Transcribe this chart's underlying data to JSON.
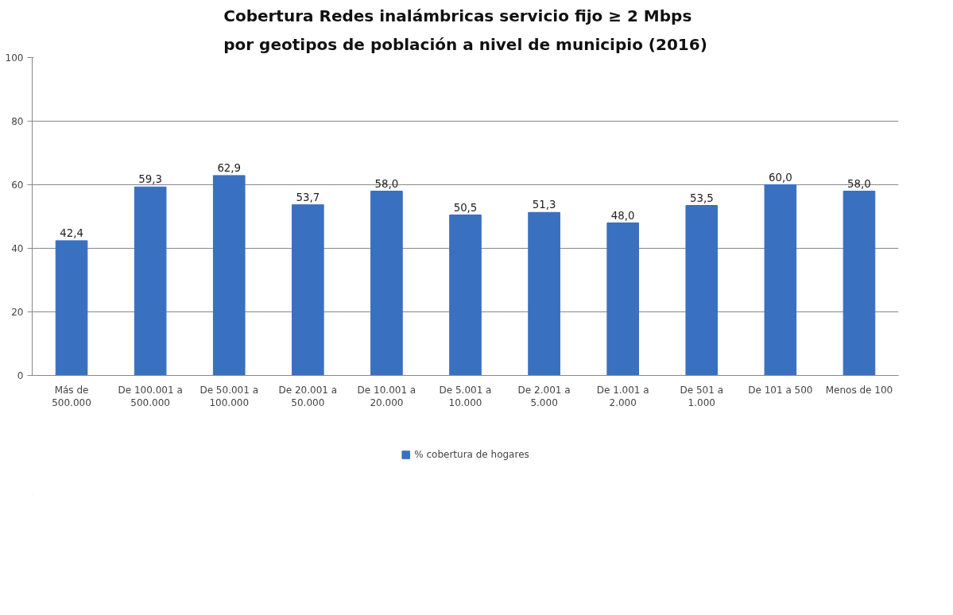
{
  "chart_data": {
    "type": "bar",
    "title": "Cobertura Redes inalámbricas servicio fijo ≥ 2 Mbps\npor geotipos de población a nivel de municipio (2016)",
    "categories": [
      "Más de 500.000",
      "De 100.001 a 500.000",
      "De 50.001 a 100.000",
      "De 20.001 a 50.000",
      "De 10.001 a 20.000",
      "De 5.001 a 10.000",
      "De 2.001 a 5.000",
      "De 1.001 a 2.000",
      "De 501 a 1.000",
      "De 101 a 500",
      "Menos de 100"
    ],
    "series": [
      {
        "name": "% cobertura de hogares",
        "color": "#3a70c0",
        "values": [
          42.4,
          59.3,
          62.9,
          53.7,
          58.0,
          50.5,
          51.3,
          48.0,
          53.5,
          60.0,
          58.0
        ],
        "value_labels": [
          "42,4",
          "59,3",
          "62,9",
          "53,7",
          "58,0",
          "50,5",
          "51,3",
          "48,0",
          "53,5",
          "60,0",
          "58,0"
        ]
      }
    ],
    "ylim": [
      0,
      100
    ],
    "yticks": [
      0,
      20,
      40,
      60,
      80,
      100
    ],
    "grid": "y",
    "legend": "bottom"
  }
}
